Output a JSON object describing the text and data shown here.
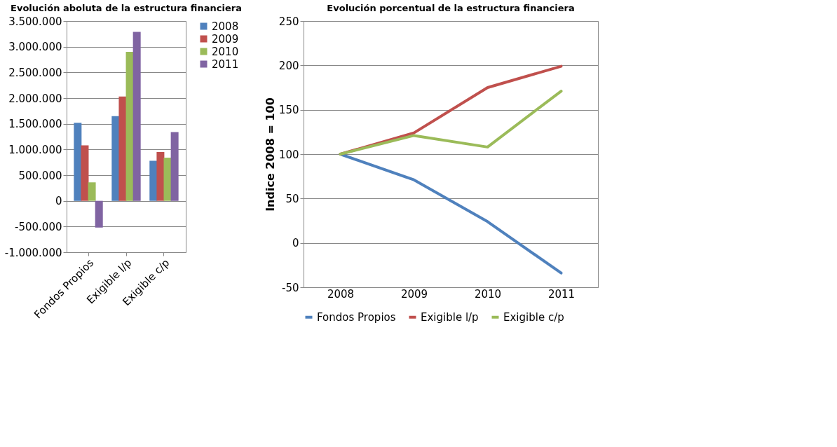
{
  "chart_data": [
    {
      "type": "bar",
      "title": "Evolución aboluta de la estructura financiera",
      "categories": [
        "Fondos Propios",
        "Exigible l/p",
        "Exigible c/p"
      ],
      "series": [
        {
          "name": "2008",
          "color": "#4f81bd",
          "values": [
            1520000,
            1650000,
            780000
          ]
        },
        {
          "name": "2009",
          "color": "#c0504d",
          "values": [
            1080000,
            2030000,
            950000
          ]
        },
        {
          "name": "2010",
          "color": "#9bbb59",
          "values": [
            360000,
            2900000,
            840000
          ]
        },
        {
          "name": "2011",
          "color": "#8064a2",
          "values": [
            -520000,
            3290000,
            1340000
          ]
        }
      ],
      "ylim": [
        -1000000,
        3500000
      ],
      "yticks": [
        {
          "value": -1000000,
          "label": "-1.000.000"
        },
        {
          "value": -500000,
          "label": "-500.000"
        },
        0,
        {
          "value": 500000,
          "label": "500.000"
        },
        {
          "value": 1000000,
          "label": "1.000.000"
        },
        {
          "value": 1500000,
          "label": "1.500.000"
        },
        {
          "value": 2000000,
          "label": "2.000.000"
        },
        {
          "value": 2500000,
          "label": "2.500.000"
        },
        {
          "value": 3000000,
          "label": "3.000.000"
        },
        {
          "value": 3500000,
          "label": "3.500.000"
        }
      ],
      "grid": "y",
      "legend": "right"
    },
    {
      "type": "line",
      "title": "Evolución porcentual de la estructura financiera",
      "ylabel": "Indice 2008 = 100",
      "categories": [
        "2008",
        "2009",
        "2010",
        "2011"
      ],
      "series": [
        {
          "name": "Fondos Propios",
          "color": "#4f81bd",
          "values": [
            100,
            71,
            24,
            -34
          ]
        },
        {
          "name": "Exigible l/p",
          "color": "#c0504d",
          "values": [
            100,
            124,
            175,
            199
          ]
        },
        {
          "name": "Exigible c/p",
          "color": "#9bbb59",
          "values": [
            100,
            121,
            108,
            171
          ]
        }
      ],
      "ylim": [
        -50,
        250
      ],
      "yticks": [
        -50,
        0,
        50,
        100,
        150,
        200,
        250
      ],
      "grid": "y",
      "legend": "bottom",
      "marker": "none",
      "line_style": "solid"
    }
  ]
}
